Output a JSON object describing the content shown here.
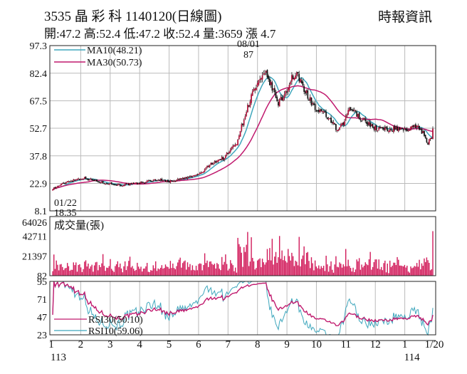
{
  "header": {
    "title": "3535 晶 彩 科 1140120(日線圖)",
    "source": "時報資訊",
    "quote": "開:47.2 高:52.4 低:47.2 收:52.4 量:3659 漲 4.7"
  },
  "colors": {
    "candle": "#b0113a",
    "ma10": "#3fa7bd",
    "ma30": "#c01a6e",
    "volume": "#d11a5a",
    "grid": "#bbbbbb",
    "axis": "#222222"
  },
  "chart_data": [
    {
      "type": "candlestick",
      "panel": "price",
      "ylim": [
        8.1,
        97.3
      ],
      "y_ticks": [
        "97.3",
        "82.4",
        "67.5",
        "52.7",
        "37.8",
        "22.9",
        "8.1"
      ],
      "x_ticks": [
        "1",
        "2",
        "3",
        "4",
        "5",
        "6",
        "7",
        "8",
        "9",
        "10",
        "11",
        "12",
        "1",
        "1/20"
      ],
      "x_year_labels": [
        "113",
        "114"
      ],
      "legend": [
        {
          "name": "MA10(48.21)",
          "color": "#3fa7bd"
        },
        {
          "name": "MA30(50.73)",
          "color": "#c01a6e"
        }
      ],
      "annotations": {
        "low_date": "01/22",
        "low_value": "18.35",
        "high_date": "08/01",
        "high_value": "87"
      },
      "anchors": [
        {
          "day": 0,
          "price": 20.0
        },
        {
          "day": 12,
          "price": 24.0
        },
        {
          "day": 25,
          "price": 26.0
        },
        {
          "day": 40,
          "price": 23.5
        },
        {
          "day": 55,
          "price": 22.0
        },
        {
          "day": 70,
          "price": 23.0
        },
        {
          "day": 85,
          "price": 25.0
        },
        {
          "day": 95,
          "price": 24.0
        },
        {
          "day": 110,
          "price": 26.0
        },
        {
          "day": 120,
          "price": 28.0
        },
        {
          "day": 130,
          "price": 34.0
        },
        {
          "day": 140,
          "price": 37.0
        },
        {
          "day": 150,
          "price": 45.0
        },
        {
          "day": 157,
          "price": 60.0
        },
        {
          "day": 163,
          "price": 72.0
        },
        {
          "day": 169,
          "price": 78.0
        },
        {
          "day": 174,
          "price": 82.0
        },
        {
          "day": 178,
          "price": 76.0
        },
        {
          "day": 184,
          "price": 66.0
        },
        {
          "day": 190,
          "price": 72.0
        },
        {
          "day": 195,
          "price": 80.0
        },
        {
          "day": 200,
          "price": 81.0
        },
        {
          "day": 205,
          "price": 74.0
        },
        {
          "day": 210,
          "price": 68.0
        },
        {
          "day": 215,
          "price": 62.0
        },
        {
          "day": 222,
          "price": 60.0
        },
        {
          "day": 228,
          "price": 56.0
        },
        {
          "day": 232,
          "price": 51.0
        },
        {
          "day": 238,
          "price": 56.0
        },
        {
          "day": 242,
          "price": 64.0
        },
        {
          "day": 248,
          "price": 60.0
        },
        {
          "day": 254,
          "price": 57.0
        },
        {
          "day": 262,
          "price": 53.0
        },
        {
          "day": 272,
          "price": 52.0
        },
        {
          "day": 282,
          "price": 52.5
        },
        {
          "day": 290,
          "price": 52.0
        },
        {
          "day": 298,
          "price": 54.0
        },
        {
          "day": 302,
          "price": 50.0
        },
        {
          "day": 306,
          "price": 45.0
        },
        {
          "day": 309,
          "price": 47.2
        },
        {
          "day": 310,
          "price": 52.4
        }
      ]
    },
    {
      "type": "bar",
      "panel": "volume",
      "title": "成交量(張)",
      "ylim": [
        82,
        64026
      ],
      "y_ticks": [
        "64026",
        "42711",
        "21397",
        "82"
      ]
    },
    {
      "type": "line",
      "panel": "rsi",
      "ylim": [
        23,
        95
      ],
      "y_ticks": [
        "95",
        "71",
        "47",
        "23"
      ],
      "series": [
        {
          "name": "RSI30(50.10)",
          "color": "#c01a6e"
        },
        {
          "name": "RSI10(59.06)",
          "color": "#3fa7bd"
        }
      ]
    }
  ]
}
